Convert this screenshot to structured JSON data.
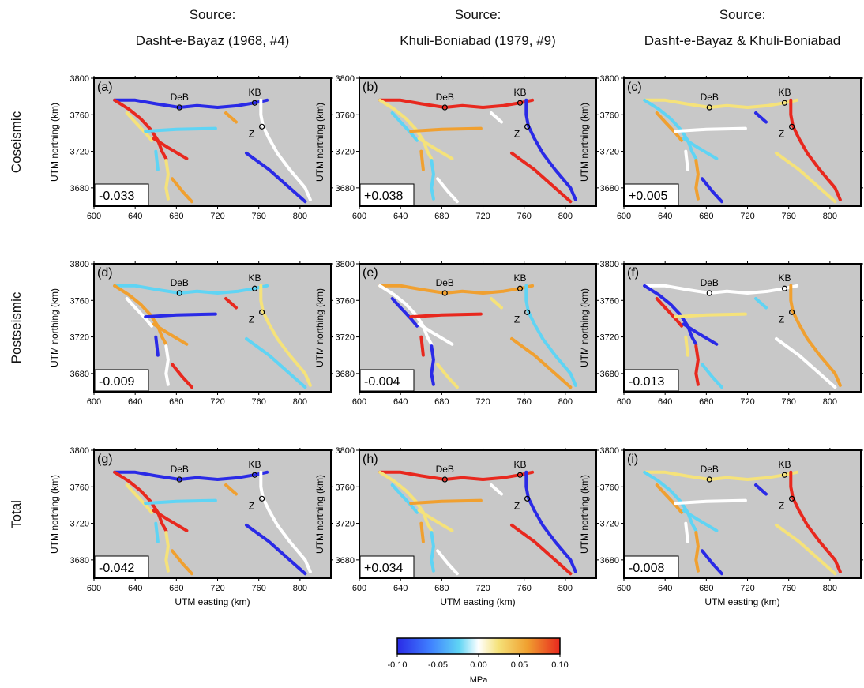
{
  "column_sources": [
    {
      "line1": "Source:",
      "line2": "Dasht-e-Bayaz (1968, #4)"
    },
    {
      "line1": "Source:",
      "line2": "Khuli-Boniabad (1979, #9)"
    },
    {
      "line1": "Source:",
      "line2": "Dasht-e-Bayaz & Khuli-Boniabad"
    }
  ],
  "row_titles": [
    "Coseismic",
    "Postseismic",
    "Total"
  ],
  "axes": {
    "xlabel": "UTM easting (km)",
    "ylabel": "UTM northing (km)",
    "xticks": [
      "600",
      "640",
      "680",
      "720",
      "760",
      "800"
    ],
    "yticks": [
      "3680",
      "3720",
      "3760",
      "3800"
    ],
    "xlim": [
      600,
      830
    ],
    "ylim": [
      3660,
      3800
    ]
  },
  "sites": [
    {
      "label": "DeB",
      "x": 683,
      "y": 3768
    },
    {
      "label": "KB",
      "x": 756,
      "y": 3773
    },
    {
      "label": "Z",
      "x": 763,
      "y": 3747
    }
  ],
  "panels": [
    {
      "letter": "(a)",
      "value": "-0.033"
    },
    {
      "letter": "(b)",
      "value": "+0.038"
    },
    {
      "letter": "(c)",
      "value": "+0.005"
    },
    {
      "letter": "(d)",
      "value": "-0.009"
    },
    {
      "letter": "(e)",
      "value": "-0.004"
    },
    {
      "letter": "(f)",
      "value": "-0.013"
    },
    {
      "letter": "(g)",
      "value": "-0.042"
    },
    {
      "letter": "(h)",
      "value": "+0.034"
    },
    {
      "letter": "(i)",
      "value": "-0.008"
    }
  ],
  "colorbar": {
    "ticks": [
      "-0.10",
      "-0.05",
      "0.00",
      "0.05",
      "0.10"
    ],
    "label": "MPa",
    "colors": [
      "#2a2ae6",
      "#3f7fff",
      "#5fd4f4",
      "#ffffff",
      "#f5e27a",
      "#f0a030",
      "#e8281e"
    ]
  },
  "colors": {
    "panel_bg": "#c8c8c8",
    "frame": "#000000"
  }
}
